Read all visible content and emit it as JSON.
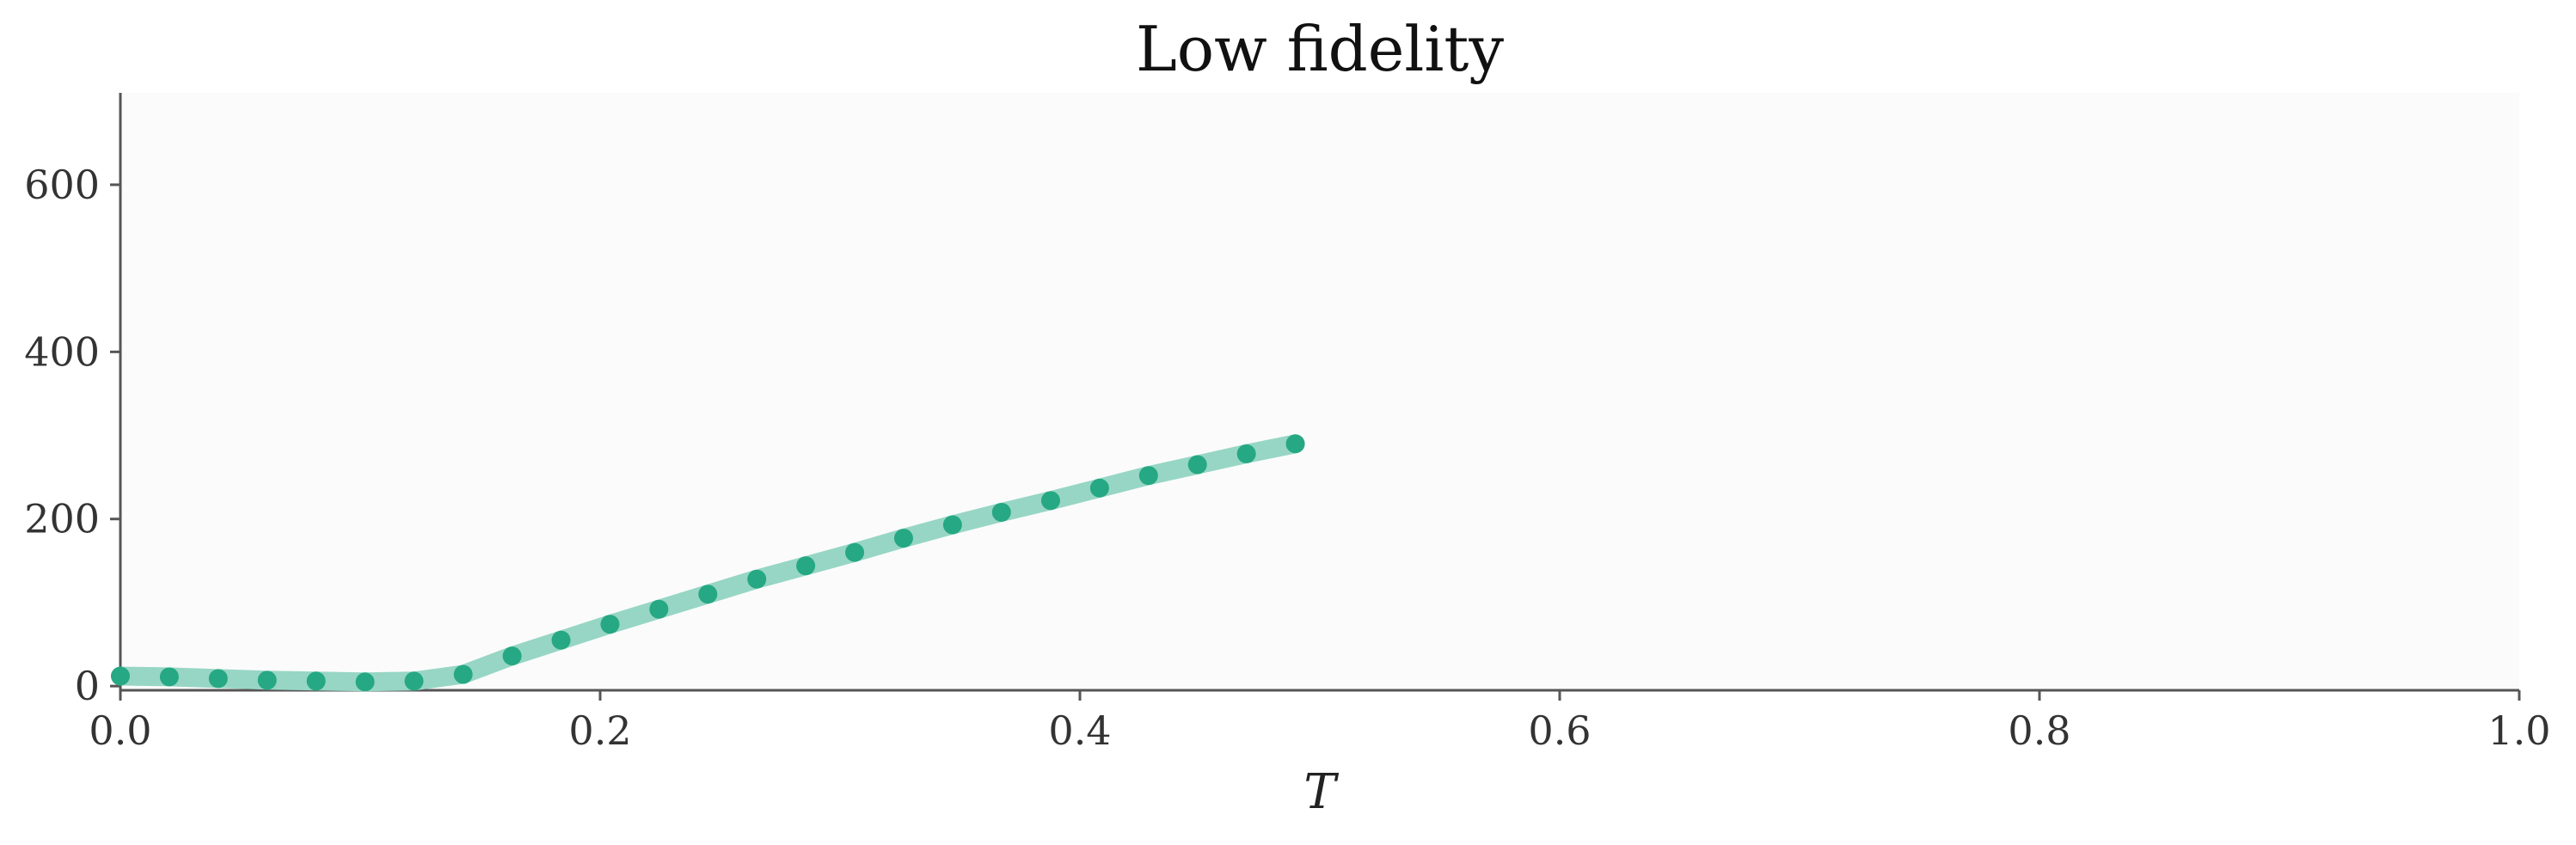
{
  "chart_data": {
    "type": "line",
    "title": "Low fidelity",
    "xlabel": "T",
    "ylabel": "",
    "xlim": [
      0.0,
      1.0
    ],
    "ylim": [
      -5,
      710
    ],
    "x_ticks": [
      "0.0",
      "0.2",
      "0.4",
      "0.6",
      "0.8",
      "1.0"
    ],
    "y_ticks": [
      "0",
      "200",
      "400",
      "600"
    ],
    "grid": false,
    "colors": {
      "line": "#97d6c4",
      "marker": "#26a884",
      "plot_bg": "#fbfbfb",
      "axis": "#555555"
    },
    "series": [
      {
        "x": [
          0.0,
          0.0204,
          0.0408,
          0.0612,
          0.0816,
          0.102,
          0.1224,
          0.1429,
          0.1633,
          0.1837,
          0.2041,
          0.2245,
          0.2449,
          0.2653,
          0.2857,
          0.3061,
          0.3265,
          0.3469,
          0.3673,
          0.3878,
          0.4082,
          0.4286,
          0.449,
          0.4694,
          0.4898
        ],
        "y": [
          12,
          11,
          9,
          7,
          6,
          5,
          6,
          14,
          36,
          55,
          74,
          92,
          110,
          128,
          144,
          160,
          177,
          193,
          208,
          222,
          237,
          252,
          265,
          278,
          290
        ]
      }
    ]
  }
}
